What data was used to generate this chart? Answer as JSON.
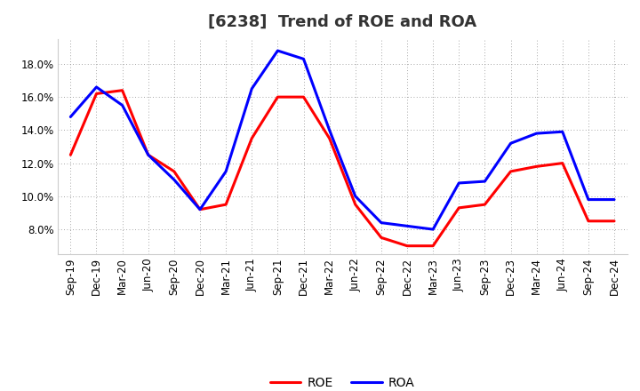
{
  "title": "[6238]  Trend of ROE and ROA",
  "labels": [
    "Sep-19",
    "Dec-19",
    "Mar-20",
    "Jun-20",
    "Sep-20",
    "Dec-20",
    "Mar-21",
    "Jun-21",
    "Sep-21",
    "Dec-21",
    "Mar-22",
    "Jun-22",
    "Sep-22",
    "Dec-22",
    "Mar-23",
    "Jun-23",
    "Sep-23",
    "Dec-23",
    "Mar-24",
    "Jun-24",
    "Sep-24",
    "Dec-24"
  ],
  "ROE": [
    12.5,
    16.2,
    16.4,
    12.5,
    11.5,
    9.2,
    9.5,
    13.5,
    16.0,
    16.0,
    13.5,
    9.5,
    7.5,
    7.0,
    7.0,
    9.3,
    9.5,
    11.5,
    11.8,
    12.0,
    8.5,
    8.5
  ],
  "ROA": [
    14.8,
    16.6,
    15.5,
    12.5,
    11.0,
    9.2,
    11.5,
    16.5,
    18.8,
    18.3,
    14.0,
    10.0,
    8.4,
    8.2,
    8.0,
    10.8,
    10.9,
    13.2,
    13.8,
    13.9,
    9.8,
    9.8
  ],
  "roe_color": "#ff0000",
  "roa_color": "#0000ff",
  "background_color": "#ffffff",
  "plot_bg_color": "#ffffff",
  "grid_color": "#888888",
  "ylim": [
    6.5,
    19.5
  ],
  "yticks": [
    8.0,
    10.0,
    12.0,
    14.0,
    16.0,
    18.0
  ],
  "line_width": 2.2,
  "title_fontsize": 13,
  "tick_fontsize": 8.5,
  "legend_fontsize": 10
}
